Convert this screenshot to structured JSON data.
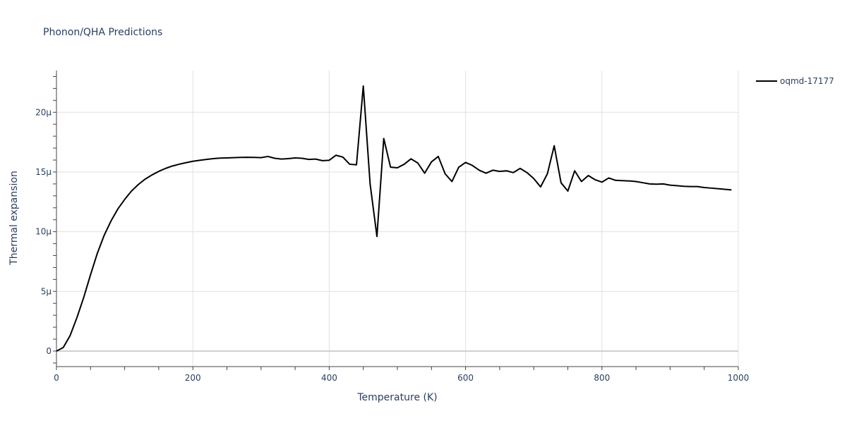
{
  "chart_data": {
    "type": "line",
    "title": "Phonon/QHA Predictions",
    "xlabel": "Temperature (K)",
    "ylabel": "Thermal expansion",
    "xlim": [
      0,
      1000
    ],
    "ylim": [
      -1.3,
      23.5
    ],
    "grid": true,
    "legend_position": "top-right",
    "x_ticks": [
      0,
      200,
      400,
      600,
      800,
      1000
    ],
    "x_tick_labels": [
      "0",
      "200",
      "400",
      "600",
      "800",
      "1000"
    ],
    "y_ticks": [
      0,
      5,
      10,
      15,
      20
    ],
    "y_tick_labels": [
      "0",
      "5µ",
      "10µ",
      "15µ",
      "20µ"
    ],
    "y_unit_note": "values in units of 1e-6 (µ)",
    "series": [
      {
        "name": "oqmd-17177",
        "color": "#000000",
        "x": [
          0,
          10,
          20,
          30,
          40,
          50,
          60,
          70,
          80,
          90,
          100,
          110,
          120,
          130,
          140,
          150,
          160,
          170,
          180,
          190,
          200,
          210,
          220,
          230,
          240,
          250,
          260,
          270,
          280,
          290,
          300,
          310,
          320,
          330,
          340,
          350,
          360,
          370,
          380,
          390,
          400,
          410,
          420,
          430,
          440,
          450,
          460,
          470,
          480,
          490,
          500,
          510,
          520,
          530,
          540,
          550,
          560,
          570,
          580,
          590,
          600,
          610,
          620,
          630,
          640,
          650,
          660,
          670,
          680,
          690,
          700,
          710,
          720,
          730,
          740,
          750,
          760,
          770,
          780,
          790,
          800,
          810,
          820,
          830,
          840,
          850,
          860,
          870,
          880,
          890,
          900,
          910,
          920,
          930,
          940,
          950,
          960,
          970,
          980,
          990
        ],
        "y": [
          0,
          0.3,
          1.3,
          2.8,
          4.5,
          6.4,
          8.2,
          9.7,
          10.9,
          11.9,
          12.7,
          13.4,
          13.95,
          14.4,
          14.75,
          15.05,
          15.3,
          15.5,
          15.65,
          15.78,
          15.9,
          15.98,
          16.05,
          16.12,
          16.16,
          16.18,
          16.2,
          16.22,
          16.23,
          16.22,
          16.2,
          16.3,
          16.15,
          16.08,
          16.12,
          16.18,
          16.15,
          16.05,
          16.08,
          15.95,
          15.98,
          16.4,
          16.25,
          15.65,
          15.6,
          22.2,
          14.0,
          9.6,
          17.8,
          15.4,
          15.35,
          15.65,
          16.1,
          15.75,
          14.9,
          15.85,
          16.3,
          14.85,
          14.2,
          15.4,
          15.8,
          15.55,
          15.15,
          14.9,
          15.15,
          15.05,
          15.1,
          14.95,
          15.3,
          14.95,
          14.45,
          13.75,
          14.85,
          17.2,
          14.1,
          13.4,
          15.1,
          14.2,
          14.7,
          14.35,
          14.15,
          14.5,
          14.3,
          14.27,
          14.25,
          14.2,
          14.1,
          14.0,
          13.98,
          14.0,
          13.9,
          13.85,
          13.8,
          13.78,
          13.78,
          13.7,
          13.65,
          13.6,
          13.55,
          13.5
        ]
      }
    ]
  }
}
